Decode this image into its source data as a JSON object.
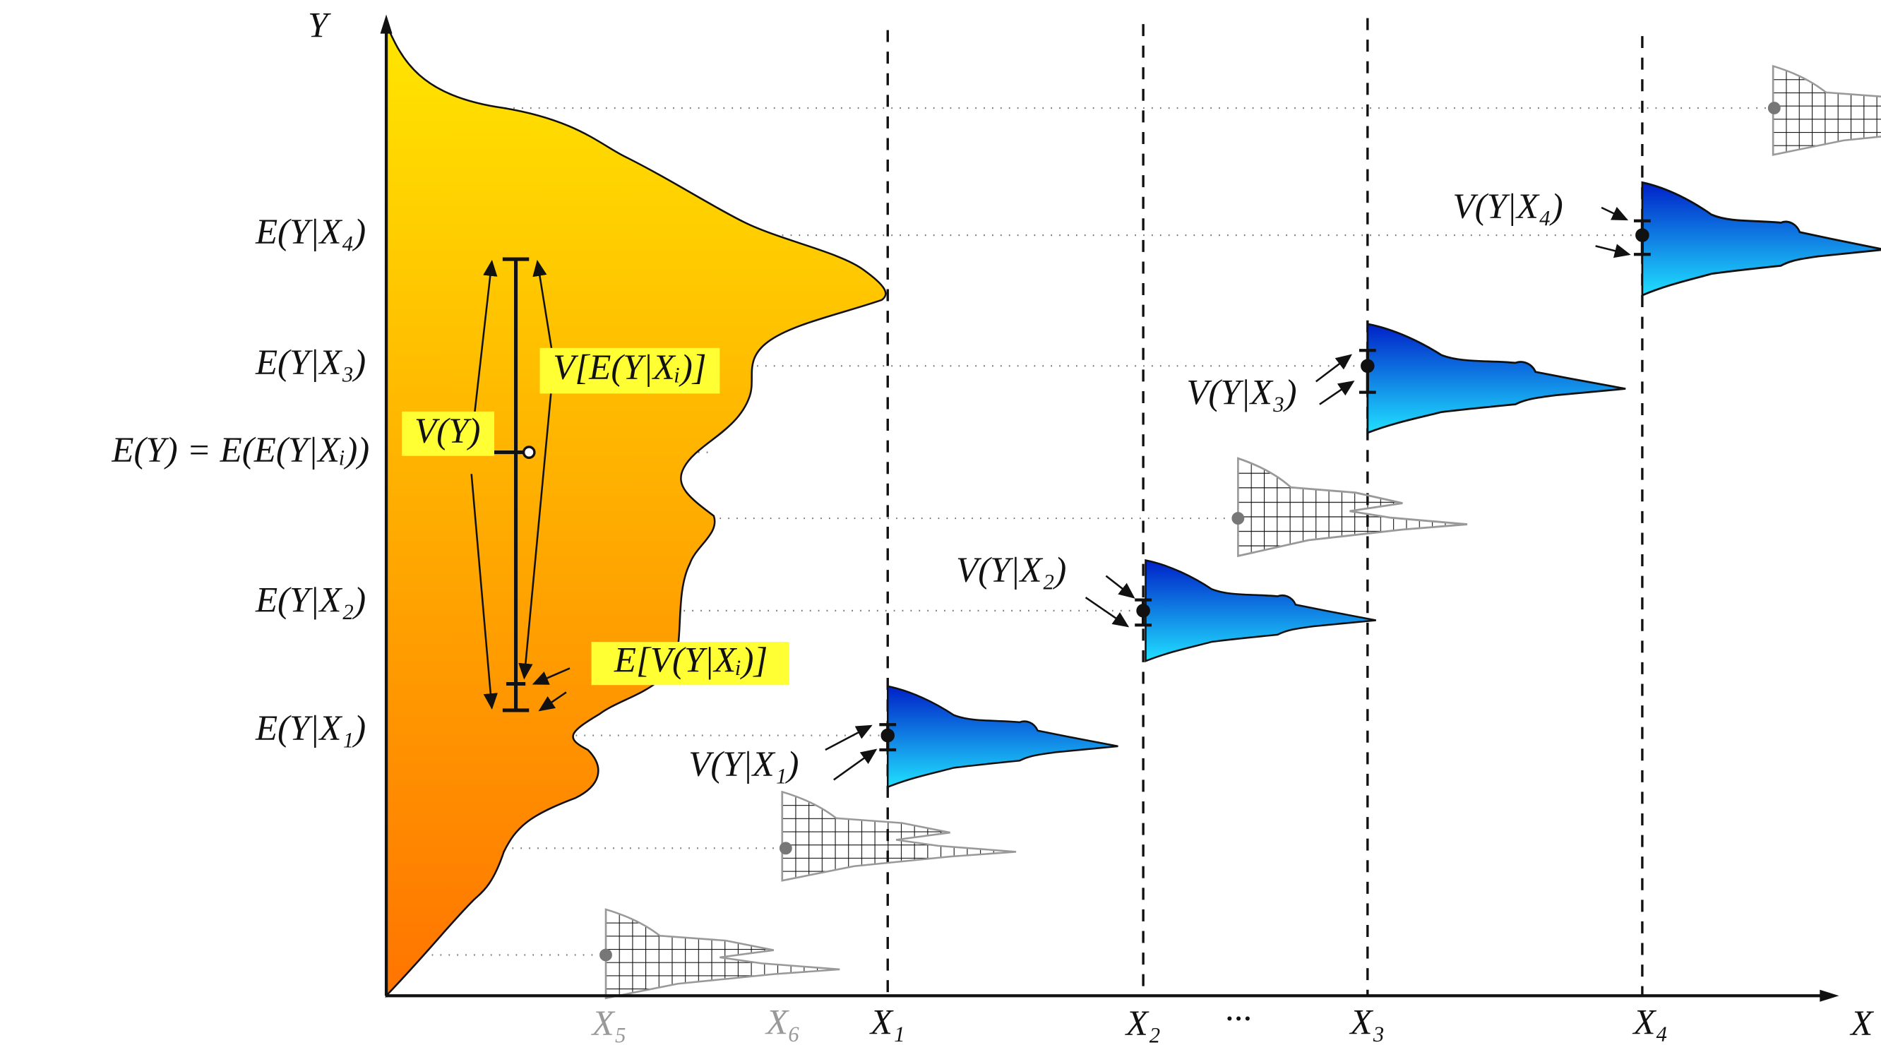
{
  "axes": {
    "y": "Y",
    "x": "X"
  },
  "y_labels": [
    "E(Y|X₄)",
    "E(Y|X₃)",
    "E(Y) = E(E(Y|Xᵢ))",
    "E(Y|X₂)",
    "E(Y|X₁)"
  ],
  "x_labels": [
    "X₅",
    "X₆",
    "X₁",
    "X₂",
    "···",
    "X₃",
    "X₄"
  ],
  "annotations": {
    "total_variance": "V(Y)",
    "variance_of_expectation": "V[E(Y|Xᵢ)]",
    "expectation_of_variance": "E[V(Y|Xᵢ)]"
  },
  "conditional_variances": [
    "V(Y|X₁)",
    "V(Y|X₂)",
    "V(Y|X₃)",
    "V(Y|X₄)"
  ]
}
